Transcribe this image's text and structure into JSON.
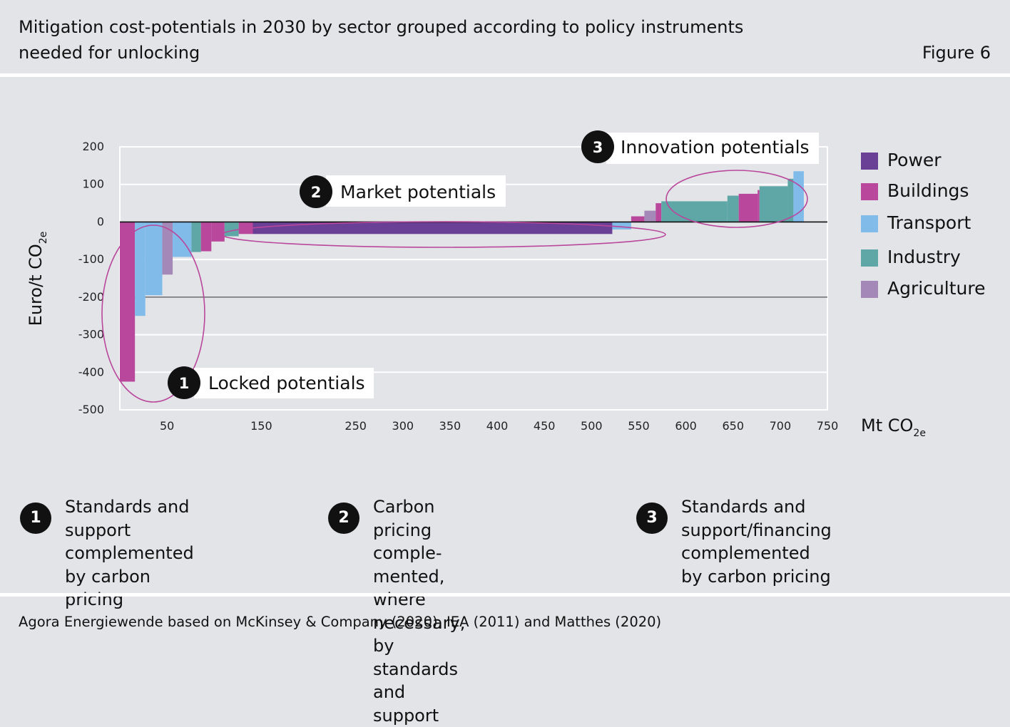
{
  "header": {
    "title": "Mitigation cost-potentials in 2030 by sector grouped according to policy instruments needed for unlocking",
    "figure_label": "Figure 6"
  },
  "colors": {
    "Power": "#6a3f96",
    "Buildings": "#b9479c",
    "Transport": "#80bbea",
    "Industry": "#5fa6a6",
    "Agriculture": "#a488b8",
    "highlight_ellipse": "#b9479c"
  },
  "chart_data": {
    "type": "bar",
    "subtype": "marginal abatement cost curve",
    "title": "",
    "xlabel": "Mt CO2e",
    "ylabel": "Euro/t CO2e",
    "xlim": [
      0,
      750
    ],
    "ylim": [
      -500,
      200
    ],
    "x_ticks": [
      "50",
      "150",
      "250",
      "300",
      "350",
      "400",
      "450",
      "500",
      "550",
      "600",
      "650",
      "700",
      "750"
    ],
    "x_tick_values": [
      50,
      150,
      250,
      300,
      350,
      400,
      450,
      500,
      550,
      600,
      650,
      700,
      750
    ],
    "y_ticks": [
      "200",
      "100",
      "0",
      "-100",
      "-200",
      "-300",
      "-400",
      "-500"
    ],
    "y_tick_values": [
      200,
      100,
      0,
      -100,
      -200,
      -300,
      -400,
      -500
    ],
    "grid": true,
    "legend_position": "right",
    "legend": [
      "Power",
      "Buildings",
      "Transport",
      "Industry",
      "Agriculture"
    ],
    "bars": [
      {
        "sector": "Buildings",
        "x_start": 0,
        "x_end": 16,
        "value": -425
      },
      {
        "sector": "Transport",
        "x_start": 16,
        "x_end": 27,
        "value": -250
      },
      {
        "sector": "Transport",
        "x_start": 27,
        "x_end": 45,
        "value": -195
      },
      {
        "sector": "Agriculture",
        "x_start": 45,
        "x_end": 56,
        "value": -140
      },
      {
        "sector": "Transport",
        "x_start": 56,
        "x_end": 76,
        "value": -93
      },
      {
        "sector": "Industry",
        "x_start": 76,
        "x_end": 86,
        "value": -80
      },
      {
        "sector": "Buildings",
        "x_start": 86,
        "x_end": 97,
        "value": -78
      },
      {
        "sector": "Buildings",
        "x_start": 97,
        "x_end": 111,
        "value": -52
      },
      {
        "sector": "Industry",
        "x_start": 111,
        "x_end": 126,
        "value": -38
      },
      {
        "sector": "Buildings",
        "x_start": 126,
        "x_end": 141,
        "value": -32
      },
      {
        "sector": "Power",
        "x_start": 141,
        "x_end": 522,
        "value": -32
      },
      {
        "sector": "Transport",
        "x_start": 522,
        "x_end": 542,
        "value": -20
      },
      {
        "sector": "Buildings",
        "x_start": 542,
        "x_end": 556,
        "value": 15
      },
      {
        "sector": "Agriculture",
        "x_start": 556,
        "x_end": 568,
        "value": 30
      },
      {
        "sector": "Buildings",
        "x_start": 568,
        "x_end": 574,
        "value": 50
      },
      {
        "sector": "Industry",
        "x_start": 574,
        "x_end": 644,
        "value": 55
      },
      {
        "sector": "Industry",
        "x_start": 644,
        "x_end": 656,
        "value": 70
      },
      {
        "sector": "Buildings",
        "x_start": 656,
        "x_end": 676,
        "value": 75
      },
      {
        "sector": "Buildings",
        "x_start": 676,
        "x_end": 678,
        "value": 85
      },
      {
        "sector": "Industry",
        "x_start": 678,
        "x_end": 708,
        "value": 95
      },
      {
        "sector": "Industry",
        "x_start": 708,
        "x_end": 714,
        "value": 115
      },
      {
        "sector": "Transport",
        "x_start": 714,
        "x_end": 725,
        "value": 135
      }
    ],
    "annotations": [
      {
        "number": "1",
        "label": "Locked potentials"
      },
      {
        "number": "2",
        "label": "Market potentials"
      },
      {
        "number": "3",
        "label": "Innovation potentials"
      }
    ]
  },
  "notes": [
    {
      "number": "1",
      "text": "Standards and support\ncomplemented by carbon\npricing"
    },
    {
      "number": "2",
      "text": "Carbon pricing comple-\nmented, where necessary,\nby standards and support"
    },
    {
      "number": "3",
      "text": "Standards and support/financing\ncomplemented by carbon pricing"
    }
  ],
  "source": "Agora Energiewende based on McKinsey & Company (2020), IEA (2011) and Matthes (2020)"
}
